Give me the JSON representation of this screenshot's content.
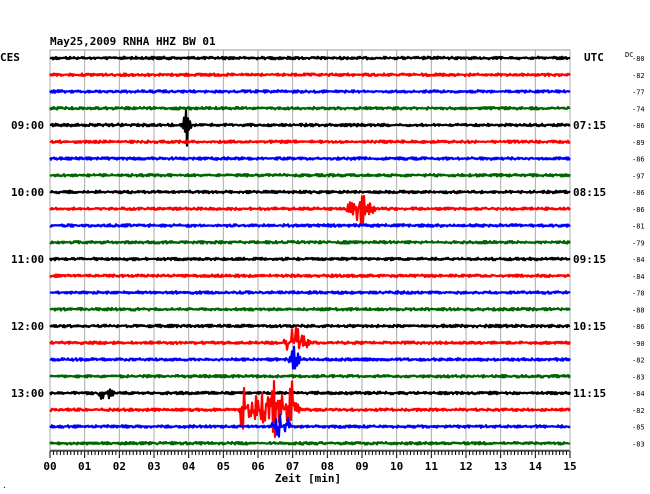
{
  "chart_data": {
    "type": "line",
    "title": "May25,2009   RNHA HHZ BW 01",
    "left_timezone_label": "CES",
    "right_timezone_label": "UTC",
    "dc_label": "DC",
    "xlabel": "Zeit [min]",
    "xlim": [
      0,
      15
    ],
    "x_tick_labels": [
      "00",
      "01",
      "02",
      "03",
      "04",
      "05",
      "06",
      "07",
      "08",
      "09",
      "10",
      "11",
      "12",
      "13",
      "14",
      "15"
    ],
    "grid": true,
    "left_time_labels": [
      {
        "trace": 4,
        "label": "09:00"
      },
      {
        "trace": 8,
        "label": "10:00"
      },
      {
        "trace": 12,
        "label": "11:00"
      },
      {
        "trace": 16,
        "label": "12:00"
      },
      {
        "trace": 20,
        "label": "13:00"
      }
    ],
    "right_time_labels": [
      {
        "trace": 4,
        "label": "07:15"
      },
      {
        "trace": 8,
        "label": "08:15"
      },
      {
        "trace": 12,
        "label": "09:15"
      },
      {
        "trace": 16,
        "label": "10:15"
      },
      {
        "trace": 20,
        "label": "11:15"
      }
    ],
    "dc_offsets": [
      "-80",
      "-82",
      "-77",
      "-74",
      "-86",
      "-89",
      "-86",
      "-97",
      "-86",
      "-86",
      "-81",
      "-79",
      "-84",
      "-84",
      "-78",
      "-88",
      "-86",
      "-90",
      "-82",
      "-83",
      "-84",
      "-82",
      "-85",
      "-83"
    ],
    "trace_colors": [
      "#000000",
      "#ff0000",
      "#0000ff",
      "#006400"
    ],
    "trace_count": 24,
    "trace_minutes": 15,
    "events": [
      {
        "trace": 4,
        "minute": 3.95,
        "amplitude": 1.6,
        "duration": 0.15
      },
      {
        "trace": 9,
        "minute": 8.95,
        "amplitude": 1.3,
        "duration": 0.5
      },
      {
        "trace": 17,
        "minute": 7.1,
        "amplitude": 1.4,
        "duration": 0.45
      },
      {
        "trace": 18,
        "minute": 7.05,
        "amplitude": 1.0,
        "duration": 0.2
      },
      {
        "trace": 20,
        "minute": 1.55,
        "amplitude": 0.6,
        "duration": 0.4
      },
      {
        "trace": 21,
        "minute": 5.6,
        "amplitude": 2.1,
        "duration": 0.2
      },
      {
        "trace": 21,
        "minute": 5.95,
        "amplitude": 1.3,
        "duration": 0.35
      },
      {
        "trace": 21,
        "minute": 6.45,
        "amplitude": 2.4,
        "duration": 0.7
      },
      {
        "trace": 21,
        "minute": 7.0,
        "amplitude": 2.8,
        "duration": 0.25
      },
      {
        "trace": 22,
        "minute": 6.7,
        "amplitude": 1.0,
        "duration": 0.4
      }
    ],
    "footer_mark": "."
  }
}
